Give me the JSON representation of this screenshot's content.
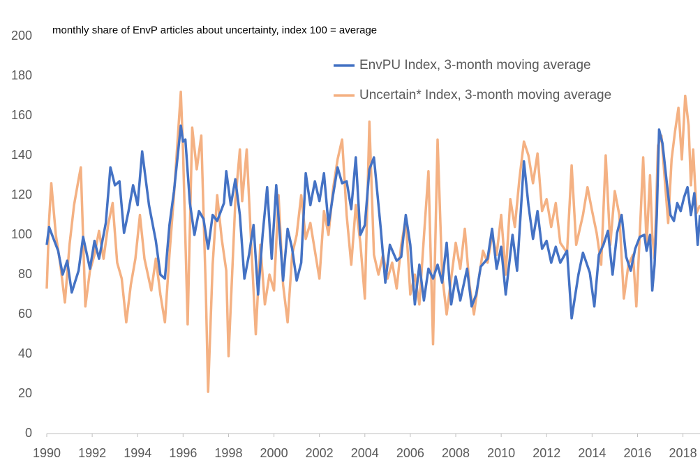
{
  "chart_data": {
    "type": "line",
    "title": "monthly share of EnvP articles about uncertainty, index 100 = average",
    "xlim": [
      1990,
      2018.75
    ],
    "xticks": [
      1990,
      1992,
      1994,
      1996,
      1998,
      2000,
      2002,
      2004,
      2006,
      2008,
      2010,
      2012,
      2014,
      2016,
      2018
    ],
    "ylim": [
      0,
      200
    ],
    "yticks": [
      0,
      20,
      40,
      60,
      80,
      100,
      120,
      140,
      160,
      180,
      200
    ],
    "grid": false,
    "legend": "top-right",
    "series": [
      {
        "name": "EnvPU Index, 3-month moving average",
        "color": "#4472c4",
        "x": [
          1990,
          1990.1,
          1990.3,
          1990.5,
          1990.7,
          1990.9,
          1991.1,
          1991.4,
          1991.6,
          1991.9,
          1992.1,
          1992.3,
          1992.6,
          1992.8,
          1993.0,
          1993.2,
          1993.4,
          1993.6,
          1993.8,
          1994.0,
          1994.2,
          1994.5,
          1994.8,
          1995.0,
          1995.2,
          1995.4,
          1995.6,
          1995.9,
          1996.0,
          1996.1,
          1996.3,
          1996.5,
          1996.7,
          1996.9,
          1997.1,
          1997.3,
          1997.5,
          1997.8,
          1997.9,
          1998.1,
          1998.3,
          1998.5,
          1998.7,
          1998.9,
          1999.1,
          1999.3,
          1999.5,
          1999.7,
          1999.9,
          2000.1,
          2000.4,
          2000.6,
          2000.8,
          2001.0,
          2001.2,
          2001.4,
          2001.6,
          2001.8,
          2002.0,
          2002.2,
          2002.4,
          2002.6,
          2002.8,
          2003.0,
          2003.2,
          2003.4,
          2003.6,
          2003.8,
          2004.0,
          2004.2,
          2004.4,
          2004.7,
          2004.9,
          2005.1,
          2005.4,
          2005.6,
          2005.8,
          2006.0,
          2006.2,
          2006.4,
          2006.6,
          2006.8,
          2007.0,
          2007.2,
          2007.4,
          2007.6,
          2007.8,
          2008.0,
          2008.2,
          2008.5,
          2008.7,
          2008.9,
          2009.1,
          2009.4,
          2009.6,
          2009.8,
          2010.0,
          2010.2,
          2010.5,
          2010.7,
          2011.0,
          2011.2,
          2011.4,
          2011.6,
          2011.8,
          2012.0,
          2012.2,
          2012.4,
          2012.6,
          2012.9,
          2013.1,
          2013.4,
          2013.6,
          2013.9,
          2014.1,
          2014.3,
          2014.5,
          2014.7,
          2014.9,
          2015.1,
          2015.3,
          2015.5,
          2015.7,
          2015.9,
          2016.1,
          2016.3,
          2016.4,
          2016.55,
          2016.65,
          2016.75,
          2016.85,
          2016.95,
          2017.1,
          2017.3,
          2017.45,
          2017.6,
          2017.75,
          2017.9,
          2018.05,
          2018.2,
          2018.35,
          2018.5,
          2018.65,
          2018.75
        ],
        "values": [
          95,
          104,
          98,
          92,
          80,
          87,
          71,
          82,
          99,
          83,
          97,
          88,
          106,
          134,
          125,
          127,
          101,
          112,
          125,
          115,
          142,
          115,
          97,
          80,
          78,
          105,
          122,
          155,
          147,
          148,
          116,
          100,
          112,
          108,
          93,
          110,
          107,
          116,
          132,
          115,
          128,
          110,
          78,
          90,
          105,
          70,
          100,
          124,
          88,
          125,
          77,
          103,
          93,
          77,
          86,
          131,
          115,
          127,
          117,
          131,
          105,
          120,
          134,
          126,
          127,
          113,
          139,
          100,
          105,
          133,
          139,
          103,
          76,
          95,
          87,
          89,
          110,
          95,
          65,
          85,
          67,
          83,
          78,
          85,
          76,
          96,
          65,
          79,
          67,
          83,
          64,
          70,
          84,
          88,
          103,
          83,
          94,
          70,
          100,
          82,
          137,
          115,
          98,
          112,
          93,
          97,
          86,
          94,
          86,
          92,
          58,
          80,
          91,
          81,
          64,
          90,
          95,
          102,
          80,
          101,
          110,
          89,
          82,
          93,
          99,
          100,
          92,
          100,
          72,
          85,
          110,
          153,
          146,
          125,
          110,
          107,
          116,
          112,
          119,
          124,
          110,
          121,
          95,
          110
        ]
      },
      {
        "name": "Uncertain* Index, 3-month moving average",
        "color": "#f4b183",
        "x": [
          1990,
          1990.1,
          1990.2,
          1990.4,
          1990.6,
          1990.8,
          1991.0,
          1991.2,
          1991.4,
          1991.5,
          1991.7,
          1991.9,
          1992.1,
          1992.3,
          1992.5,
          1992.7,
          1992.9,
          1993.1,
          1993.3,
          1993.5,
          1993.7,
          1993.9,
          1994.1,
          1994.3,
          1994.6,
          1994.8,
          1995.0,
          1995.2,
          1995.4,
          1995.6,
          1995.9,
          1996.0,
          1996.2,
          1996.4,
          1996.6,
          1996.8,
          1997.0,
          1997.1,
          1997.3,
          1997.5,
          1997.7,
          1997.9,
          1998.0,
          1998.3,
          1998.5,
          1998.6,
          1998.8,
          1999.0,
          1999.2,
          1999.4,
          1999.6,
          1999.8,
          2000.0,
          2000.2,
          2000.4,
          2000.6,
          2000.8,
          2001.0,
          2001.2,
          2001.4,
          2001.6,
          2001.8,
          2002.0,
          2002.2,
          2002.4,
          2002.6,
          2002.8,
          2003.0,
          2003.2,
          2003.4,
          2003.6,
          2003.8,
          2004.0,
          2004.2,
          2004.4,
          2004.6,
          2004.8,
          2005.0,
          2005.2,
          2005.4,
          2005.6,
          2005.8,
          2006.0,
          2006.2,
          2006.4,
          2006.6,
          2006.8,
          2007.0,
          2007.2,
          2007.4,
          2007.6,
          2007.8,
          2008.0,
          2008.2,
          2008.4,
          2008.6,
          2008.8,
          2009.0,
          2009.2,
          2009.4,
          2009.6,
          2009.8,
          2010.0,
          2010.2,
          2010.4,
          2010.6,
          2010.8,
          2011.0,
          2011.2,
          2011.4,
          2011.6,
          2011.8,
          2012.0,
          2012.2,
          2012.4,
          2012.6,
          2012.9,
          2013.1,
          2013.3,
          2013.6,
          2013.8,
          2014.0,
          2014.2,
          2014.4,
          2014.6,
          2014.8,
          2015.0,
          2015.2,
          2015.4,
          2015.6,
          2015.8,
          2015.95,
          2016.1,
          2016.25,
          2016.4,
          2016.55,
          2016.65,
          2016.75,
          2016.9,
          2017.05,
          2017.2,
          2017.35,
          2017.5,
          2017.65,
          2017.8,
          2017.95,
          2018.1,
          2018.25,
          2018.35,
          2018.45,
          2018.6,
          2018.75
        ],
        "values": [
          73,
          107,
          126,
          100,
          85,
          66,
          95,
          115,
          128,
          134,
          64,
          82,
          90,
          102,
          88,
          105,
          116,
          86,
          78,
          56,
          75,
          88,
          110,
          88,
          72,
          88,
          70,
          56,
          90,
          120,
          172,
          142,
          55,
          154,
          133,
          150,
          72,
          21,
          85,
          120,
          98,
          82,
          39,
          117,
          143,
          117,
          143,
          95,
          50,
          95,
          65,
          80,
          72,
          120,
          75,
          56,
          90,
          100,
          120,
          98,
          106,
          92,
          78,
          112,
          100,
          123,
          138,
          148,
          110,
          85,
          115,
          96,
          68,
          157,
          90,
          80,
          90,
          78,
          86,
          73,
          95,
          108,
          70,
          80,
          65,
          99,
          132,
          45,
          148,
          80,
          60,
          78,
          96,
          83,
          103,
          75,
          60,
          77,
          92,
          86,
          100,
          90,
          110,
          80,
          118,
          104,
          128,
          147,
          140,
          126,
          141,
          112,
          118,
          104,
          116,
          96,
          91,
          135,
          95,
          110,
          124,
          112,
          101,
          85,
          140,
          95,
          122,
          110,
          68,
          85,
          90,
          64,
          100,
          139,
          95,
          130,
          100,
          88,
          145,
          150,
          128,
          106,
          138,
          152,
          164,
          138,
          170,
          155,
          125,
          143,
          111,
          115
        ]
      }
    ]
  }
}
